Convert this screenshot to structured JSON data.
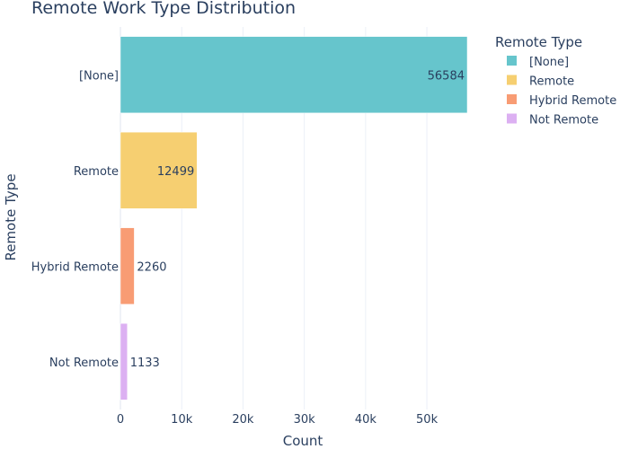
{
  "chart_data": {
    "type": "bar",
    "orientation": "horizontal",
    "title": "Remote Work Type Distribution",
    "xlabel": "Count",
    "ylabel": "Remote Type",
    "categories": [
      "[None]",
      "Remote",
      "Hybrid Remote",
      "Not Remote"
    ],
    "values": [
      56584,
      12499,
      2260,
      1133
    ],
    "data_labels": [
      "56584",
      "12499",
      "2260",
      "1133"
    ],
    "colors": [
      "#66c5cc",
      "#f6cf71",
      "#f89c74",
      "#dcb0f2"
    ],
    "xlim": [
      0,
      56584
    ],
    "xticks": [
      0,
      10000,
      20000,
      30000,
      40000,
      50000
    ],
    "xtick_labels": [
      "0",
      "10k",
      "20k",
      "30k",
      "40k",
      "50k"
    ],
    "grid": true,
    "legend": {
      "title": "Remote Type",
      "placement": "right",
      "entries": [
        "[None]",
        "Remote",
        "Hybrid Remote",
        "Not Remote"
      ]
    }
  }
}
